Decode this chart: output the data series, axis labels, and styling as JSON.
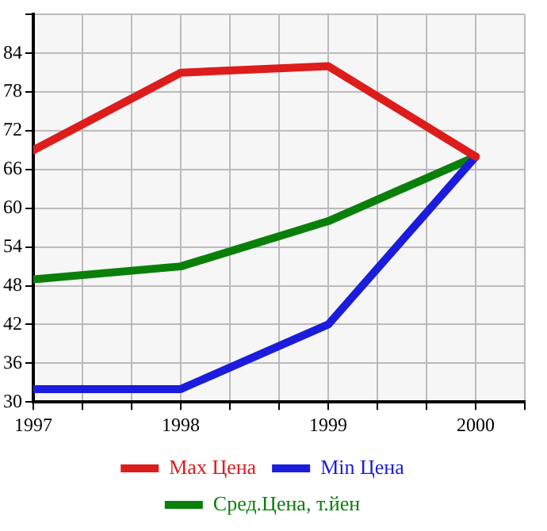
{
  "chart_data": {
    "type": "line",
    "x": [
      1997,
      1998,
      1999,
      2000
    ],
    "series": [
      {
        "name": "Max Цена",
        "color": "#dd1c1c",
        "values": [
          69,
          81,
          82,
          68
        ]
      },
      {
        "name": "Min Цена",
        "color": "#1c1cdd",
        "values": [
          32,
          32,
          42,
          68
        ]
      },
      {
        "name": "Сред.Цена, т.йен",
        "color": "#0a7f0a",
        "values": [
          49,
          51,
          58,
          68
        ]
      }
    ],
    "xlim": [
      1997,
      2000.333
    ],
    "xticks": [
      1997,
      {
        "value": 1997.333,
        "label": null
      },
      {
        "value": 1997.667,
        "label": null
      },
      1998,
      {
        "value": 1998.333,
        "label": null
      },
      {
        "value": 1998.667,
        "label": null
      },
      1999,
      {
        "value": 1999.333,
        "label": null
      },
      {
        "value": 1999.667,
        "label": null
      },
      2000,
      {
        "value": 2000.333,
        "label": null
      }
    ],
    "ylim": [
      30,
      90
    ],
    "yticks": [
      30,
      36,
      42,
      48,
      54,
      60,
      66,
      72,
      78,
      84,
      {
        "value": 90,
        "label": null
      }
    ],
    "grid": true,
    "legend": "bottom",
    "marker": "none",
    "line_style": "solid"
  }
}
